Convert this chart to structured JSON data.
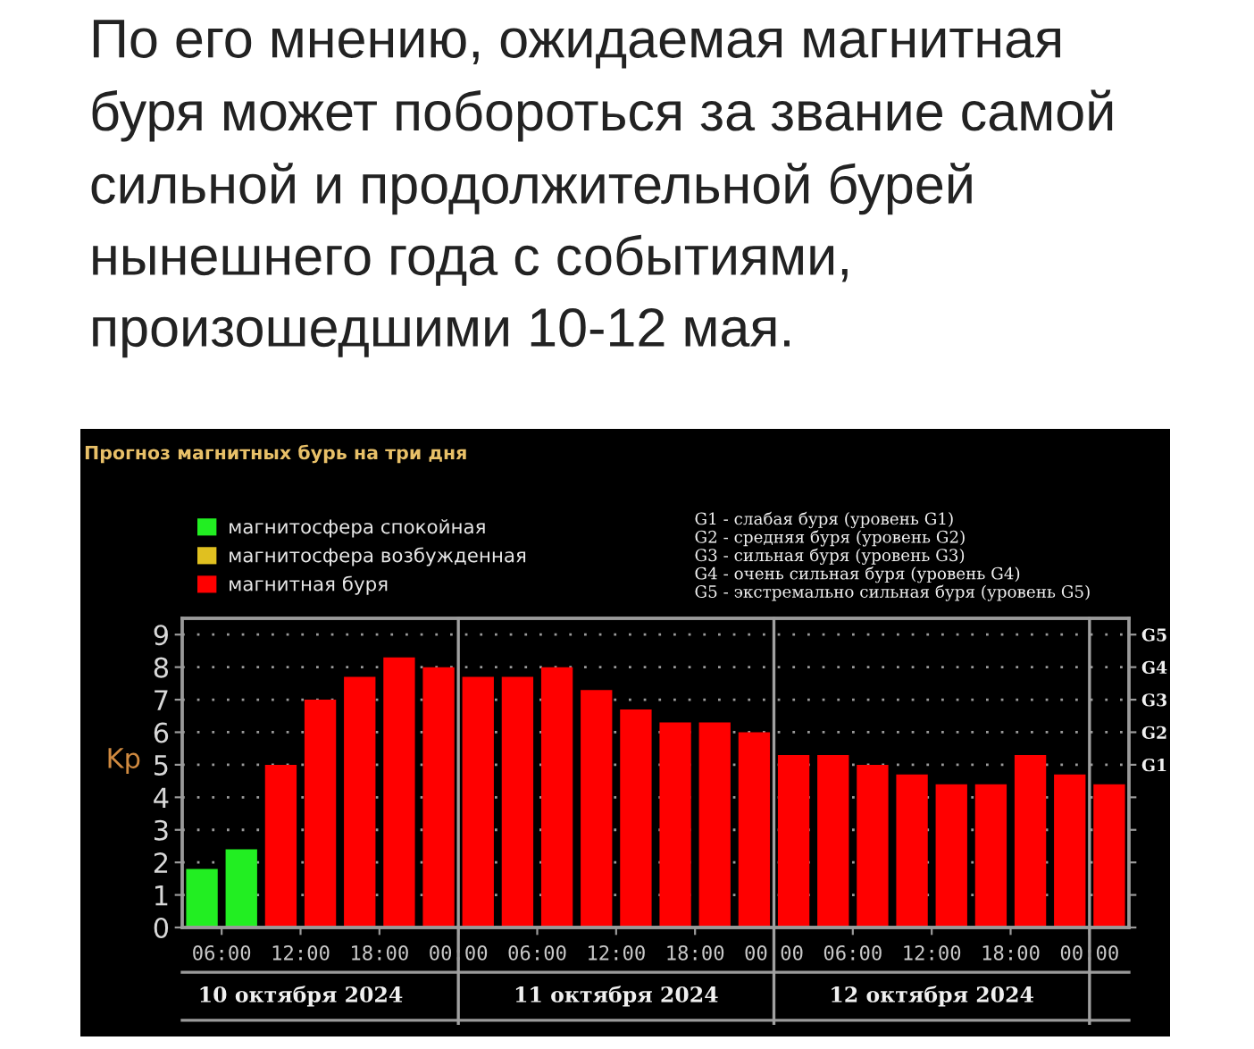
{
  "chart_data": {
    "type": "bar",
    "title": "По его мнению, ожидаемая магнитная\nбуря может побороться за звание самой\nсильной и продолжительной бурей\nнынешнего года с событиями,\nпроизошедшими 10-12 мая.",
    "subtitle": "Прогноз магнитных бурь на три дня",
    "ylabel": "Kp",
    "x": [
      "2024-10-10T04:30",
      "2024-10-10T07:30",
      "2024-10-10T10:30",
      "2024-10-10T13:30",
      "2024-10-10T16:30",
      "2024-10-10T19:30",
      "2024-10-10T22:30",
      "2024-10-11T01:30",
      "2024-10-11T04:30",
      "2024-10-11T07:30",
      "2024-10-11T10:30",
      "2024-10-11T13:30",
      "2024-10-11T16:30",
      "2024-10-11T19:30",
      "2024-10-11T22:30",
      "2024-10-12T01:30",
      "2024-10-12T04:30",
      "2024-10-12T07:30",
      "2024-10-12T10:30",
      "2024-10-12T13:30",
      "2024-10-12T16:30",
      "2024-10-12T19:30",
      "2024-10-12T22:30",
      "2024-10-13T01:30"
    ],
    "xlim": [
      "2024-10-10T03:00",
      "2024-10-13T03:00"
    ],
    "xticks": [
      {
        "value": "2024-10-10T06:00",
        "label": "06:00"
      },
      {
        "value": "2024-10-10T12:00",
        "label": "12:00"
      },
      {
        "value": "2024-10-10T18:00",
        "label": "18:00"
      },
      {
        "value": "2024-10-11T00:00",
        "label": "00:00"
      },
      {
        "value": "2024-10-11T06:00",
        "label": "06:00"
      },
      {
        "value": "2024-10-11T12:00",
        "label": "12:00"
      },
      {
        "value": "2024-10-11T18:00",
        "label": "18:00"
      },
      {
        "value": "2024-10-12T00:00",
        "label": "00:00"
      },
      {
        "value": "2024-10-12T06:00",
        "label": "06:00"
      },
      {
        "value": "2024-10-12T12:00",
        "label": "12:00"
      },
      {
        "value": "2024-10-12T18:00",
        "label": "18:00"
      },
      {
        "value": "2024-10-13T00:00",
        "label": "00:00"
      }
    ],
    "ylim": [
      0,
      9.5
    ],
    "yticks": [
      0,
      1,
      2,
      3,
      4,
      5,
      6,
      7,
      8,
      9
    ],
    "y2_categories": [
      "G5",
      "G4",
      "G3",
      "G2",
      "G1",
      null,
      null,
      null,
      null,
      null
    ],
    "series": [
      {
        "name": "магнитосфера спокойная",
        "color": "#22ee22",
        "values": [
          1.8,
          2.4,
          null,
          null,
          null,
          null,
          null,
          null,
          null,
          null,
          null,
          null,
          null,
          null,
          null,
          null,
          null,
          null,
          null,
          null,
          null,
          null,
          null,
          null
        ]
      },
      {
        "name": "магнитосфера возбужденная",
        "color": "#e0c020",
        "values": [
          null,
          null,
          null,
          null,
          null,
          null,
          null,
          null,
          null,
          null,
          null,
          null,
          null,
          null,
          null,
          null,
          null,
          null,
          null,
          null,
          null,
          null,
          null,
          null
        ]
      },
      {
        "name": "магнитная буря",
        "color": "#ff0000",
        "values": [
          null,
          null,
          5.0,
          7.0,
          7.7,
          8.3,
          8.0,
          7.7,
          7.7,
          8.0,
          7.3,
          6.7,
          6.3,
          6.3,
          6.0,
          5.3,
          5.3,
          5.0,
          4.7,
          4.4,
          4.4,
          5.3,
          4.7,
          4.4
        ]
      }
    ],
    "ref_lines": [
      {
        "axis": "x",
        "value": "2024-10-11T00:00",
        "color": "#a0a0a0"
      },
      {
        "axis": "x",
        "value": "2024-10-12T00:00",
        "color": "#a0a0a0"
      },
      {
        "axis": "x",
        "value": "2024-10-13T00:00",
        "color": "#a0a0a0"
      }
    ],
    "annotations": [
      "G1 - слабая буря (уровень G1)",
      "G2 - средняя буря (уровень G2)",
      "G3 - сильная буря (уровень G3)",
      "G4 - очень сильная буря (уровень G4)",
      "G5 - экстремально сильная буря (уровень G5)",
      "10 октября 2024",
      "11 октября 2024",
      "12 октября 2024"
    ],
    "grid": "y",
    "legend": "top left"
  }
}
